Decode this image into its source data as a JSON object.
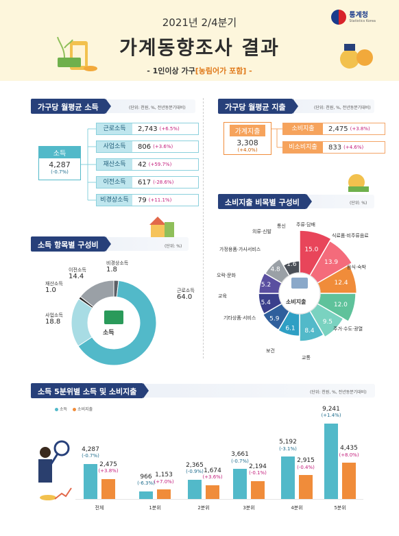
{
  "header": {
    "subtitle": "2021년 2/4분기",
    "title": "가계동향조사 결과",
    "note_prefix": "- 1인이상 가구",
    "note_suffix": "[농림어가 포함] -",
    "logo_name": "통계청",
    "logo_sub": "Statistics Korea"
  },
  "income": {
    "title": "가구당 월평균 소득",
    "unit": "(단위: 천원, %, 전년동분기대비)",
    "total": {
      "label": "소득",
      "value": "4,287",
      "change": "(-0.7%)"
    },
    "items": [
      {
        "label": "근로소득",
        "value": "2,743",
        "change": "(+6.5%)"
      },
      {
        "label": "사업소득",
        "value": "806",
        "change": "(+3.6%)"
      },
      {
        "label": "재산소득",
        "value": "42",
        "change": "(+59.7%)"
      },
      {
        "label": "이전소득",
        "value": "617",
        "change": "(-28.6%)"
      },
      {
        "label": "비경상소득",
        "value": "79",
        "change": "(+11.1%)"
      }
    ]
  },
  "expenditure": {
    "title": "가구당 월평균 지출",
    "unit": "(단위: 천원, %, 전년동분기대비)",
    "total": {
      "label": "가계지출",
      "value": "3,308",
      "change": "(+4.0%)"
    },
    "items": [
      {
        "label": "소비지출",
        "value": "2,475",
        "change": "(+3.8%)"
      },
      {
        "label": "비소비지출",
        "value": "833",
        "change": "(+4.6%)"
      }
    ]
  },
  "income_comp": {
    "title": "소득 항목별 구성비",
    "unit": "(단위: %)",
    "center": "소득"
  },
  "consumption_comp": {
    "title": "소비지출 비목별 구성비",
    "unit": "(단위: %)",
    "center": "소비지출"
  },
  "quintile": {
    "title": "소득 5분위별 소득 및 소비지출",
    "unit": "(단위: 천원, %, 전년동분기대비)",
    "legend_income": "소득",
    "legend_consumption": "소비지출"
  },
  "colors": {
    "navy": "#27407a",
    "teal": "#52b9c9",
    "orange": "#f08c3a"
  },
  "chart_data": [
    {
      "type": "pie",
      "title": "소득 항목별 구성비",
      "categories": [
        "근로소득",
        "사업소득",
        "재산소득",
        "이전소득",
        "비경상소득"
      ],
      "values": [
        64.0,
        18.8,
        1.0,
        14.4,
        1.8
      ],
      "value_labels": [
        "64.0",
        "18.8",
        "1.0",
        "14.4",
        "1.8"
      ]
    },
    {
      "type": "pie",
      "title": "소비지출 비목별 구성비",
      "categories": [
        "식료품·비주류음료",
        "음식·숙박",
        "주거·수도·광열",
        "교통",
        "보건",
        "기타상품·서비스",
        "교육",
        "오락·문화",
        "가정용품·가사서비스",
        "의류·신발",
        "통신",
        "주류·담배"
      ],
      "values": [
        15.0,
        13.9,
        12.4,
        12.0,
        9.5,
        8.4,
        6.1,
        5.9,
        5.4,
        5.2,
        4.8,
        1.6
      ],
      "value_labels": [
        "15.0",
        "13.9",
        "12.4",
        "12.0",
        "9.5",
        "8.4",
        "6.1",
        "5.9",
        "5.4",
        "5.2",
        "4.8",
        "1.6"
      ]
    },
    {
      "type": "bar",
      "title": "소득 5분위별 소득 및 소비지출",
      "categories": [
        "전체",
        "1분위",
        "2분위",
        "3분위",
        "4분위",
        "5분위"
      ],
      "series": [
        {
          "name": "소득",
          "values": [
            4287,
            966,
            2365,
            3661,
            5192,
            9241
          ],
          "labels": [
            "4,287",
            "966",
            "2,365",
            "3,661",
            "5,192",
            "9,241"
          ],
          "changes": [
            "(-0.7%)",
            "(-6.3%)",
            "(-0.9%)",
            "(-0.7%)",
            "(-3.1%)",
            "(+1.4%)"
          ]
        },
        {
          "name": "소비지출",
          "values": [
            2475,
            1153,
            1674,
            2194,
            2915,
            4435
          ],
          "labels": [
            "2,475",
            "1,153",
            "1,674",
            "2,194",
            "2,915",
            "4,435"
          ],
          "changes": [
            "(+3.8%)",
            "(+7.0%)",
            "(+3.6%)",
            "(-0.1%)",
            "(-0.4%)",
            "(+8.0%)"
          ]
        }
      ],
      "ylim": [
        0,
        9241
      ]
    }
  ]
}
